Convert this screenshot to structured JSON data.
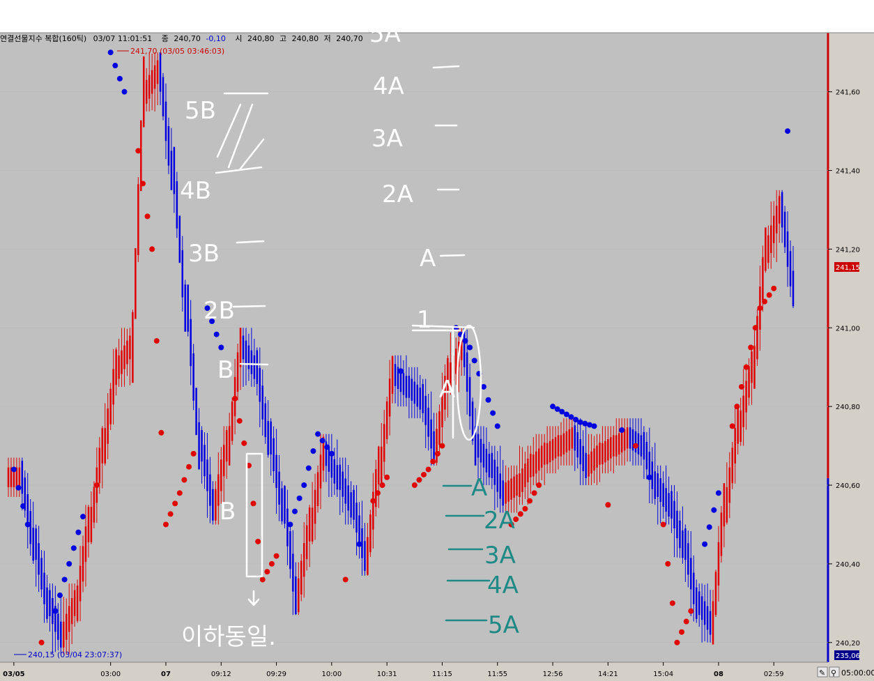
{
  "header": {
    "symbol": "연결선물지수 복합(160틱)",
    "datetime": "03/07 11:01:51",
    "close_label": "종",
    "close_value": "240,70",
    "change": "-0,10",
    "open_label": "시",
    "open_value": "240,80",
    "high_label": "고",
    "high_value": "240,80",
    "low_label": "저",
    "low_value": "240,70"
  },
  "annotations": {
    "high_marker": "241,70 (03/05 03:46:03)",
    "low_marker": "240,15 (03/04 23:07:37)"
  },
  "price_box": {
    "current": "241,15",
    "bottom": "235,06"
  },
  "bottom_right_time": "05:00:00",
  "colors": {
    "up": "#e00000",
    "down": "#0000e0",
    "background": "#c0c0c0",
    "ink": "#ffffff",
    "teal_ink": "#1f8a85"
  },
  "handwriting": {
    "left_levels": [
      "5B",
      "4B",
      "3B",
      "2B",
      "B",
      "B"
    ],
    "right_levels_upper": [
      "5A",
      "4A",
      "3A",
      "2A",
      "A",
      "1",
      "A"
    ],
    "right_levels_lower": [
      "A",
      "2A",
      "3A",
      "4A",
      "5A"
    ],
    "footnote": "이하동일."
  },
  "chart_data": {
    "type": "candlestick-parabolic-sar",
    "ylim": [
      240.15,
      241.75
    ],
    "yticks": [
      "240,20",
      "240,40",
      "240,60",
      "240,80",
      "241,00",
      "241,20",
      "241,40",
      "241,60"
    ],
    "ytick_values": [
      240.2,
      240.4,
      240.6,
      240.8,
      241.0,
      241.2,
      241.4,
      241.6
    ],
    "xticks": [
      "03/05",
      "03:00",
      "07",
      "09:12",
      "09:29",
      "10:00",
      "10:31",
      "11:15",
      "11:55",
      "12:56",
      "14:21",
      "15:04",
      "08",
      "02:59"
    ],
    "xtick_bold": [
      true,
      false,
      true,
      false,
      false,
      false,
      false,
      false,
      false,
      false,
      false,
      false,
      true,
      false
    ],
    "xtick_positions": [
      0,
      7,
      11,
      15,
      19,
      23,
      27,
      31,
      35,
      39,
      43,
      47,
      51,
      55
    ],
    "closes": [
      240.62,
      240.45,
      240.3,
      240.22,
      240.3,
      240.5,
      240.7,
      240.9,
      240.95,
      241.6,
      241.65,
      241.4,
      241.05,
      240.7,
      240.55,
      240.7,
      240.95,
      240.9,
      240.72,
      240.55,
      240.32,
      240.5,
      240.68,
      240.62,
      240.55,
      240.42,
      240.65,
      240.88,
      240.85,
      240.82,
      240.7,
      240.88,
      240.95,
      240.7,
      240.65,
      240.58,
      240.6,
      240.65,
      240.68,
      240.7,
      240.72,
      240.65,
      240.68,
      240.7,
      240.72,
      240.7,
      240.6,
      240.55,
      240.45,
      240.3,
      240.25,
      240.55,
      240.75,
      240.9,
      241.2,
      241.3,
      241.1
    ],
    "sar": [
      240.64,
      240.5,
      240.2,
      240.28,
      240.4,
      240.52,
      240.6,
      241.7,
      241.6,
      241.45,
      241.2,
      240.5,
      240.58,
      240.68,
      241.05,
      240.95,
      240.82,
      240.65,
      240.36,
      240.42,
      240.5,
      240.6,
      240.73,
      240.68,
      240.36,
      240.45,
      240.56,
      240.62,
      240.89,
      240.6,
      240.64,
      240.7,
      241.0,
      240.95,
      240.85,
      240.75,
      240.5,
      240.54,
      240.6,
      240.8,
      240.78,
      240.76,
      240.75,
      240.55,
      240.74,
      240.7,
      240.62,
      240.5,
      240.2,
      240.28,
      240.45,
      240.58,
      240.75,
      240.9,
      241.05,
      241.1,
      241.5
    ]
  }
}
